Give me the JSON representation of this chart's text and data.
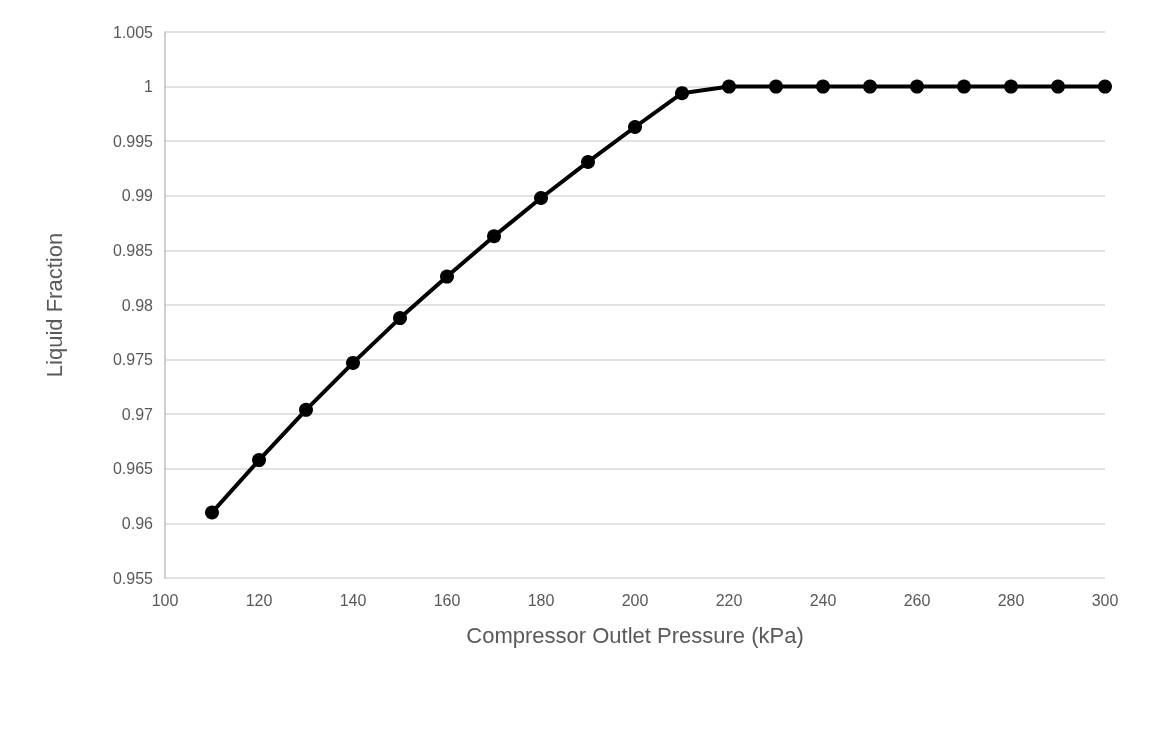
{
  "chart_data": {
    "type": "line",
    "xlabel": "Compressor Outlet Pressure (kPa)",
    "ylabel": "Liquid Fraction",
    "x": [
      110,
      120,
      130,
      140,
      150,
      160,
      170,
      180,
      190,
      200,
      210,
      220,
      230,
      240,
      250,
      260,
      270,
      280,
      290,
      300
    ],
    "series": [
      {
        "color": "#000000",
        "values": [
          0.961,
          0.9658,
          0.9704,
          0.9747,
          0.9788,
          0.9826,
          0.9863,
          0.9898,
          0.9931,
          0.9963,
          0.9994,
          1,
          1,
          1,
          1,
          1,
          1,
          1,
          1,
          1
        ]
      }
    ],
    "xlim": [
      100,
      300
    ],
    "xticks": [
      100,
      120,
      140,
      160,
      180,
      200,
      220,
      240,
      260,
      280,
      300
    ],
    "ylim": [
      0.955,
      1.005
    ],
    "yticks": [
      0.955,
      0.96,
      0.965,
      0.97,
      0.975,
      0.98,
      0.985,
      0.99,
      0.995,
      1,
      1.005
    ],
    "grid": "y",
    "marker": "circle",
    "line_style": "solid"
  }
}
